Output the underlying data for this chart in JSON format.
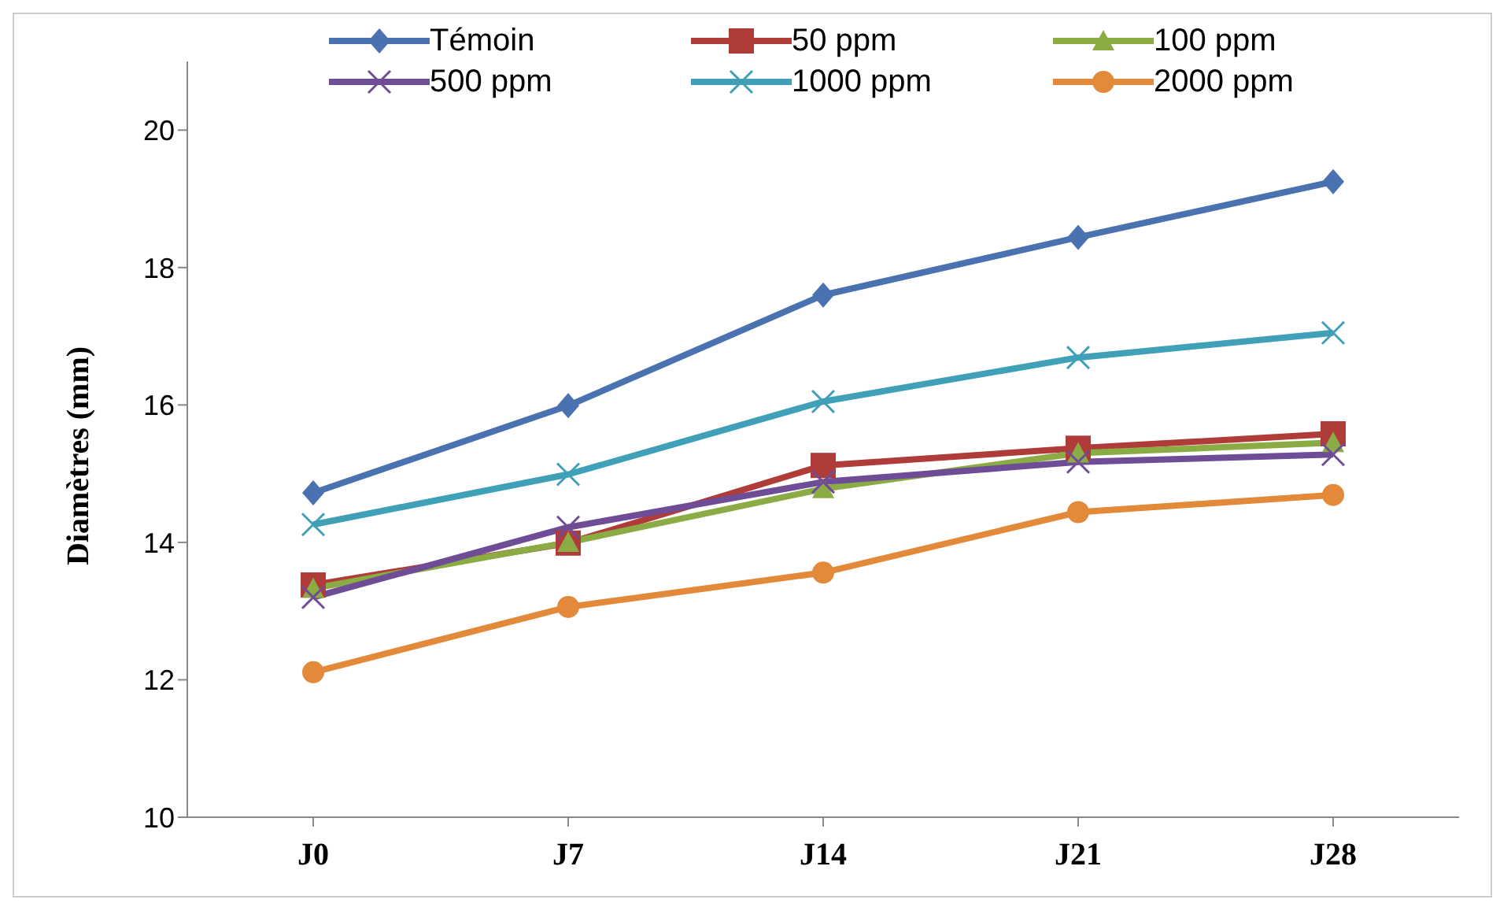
{
  "chart_data": {
    "type": "line",
    "ylabel": "Diamètres (mm)",
    "categories": [
      "J0",
      "J7",
      "J14",
      "J21",
      "J28"
    ],
    "series": [
      {
        "name": "Témoin",
        "color": "#4a72b0",
        "marker": "diamond",
        "values": [
          14.72,
          15.99,
          17.6,
          18.44,
          19.25
        ]
      },
      {
        "name": "50 ppm",
        "color": "#b03c3a",
        "marker": "square",
        "values": [
          13.38,
          13.99,
          15.12,
          15.37,
          15.58
        ]
      },
      {
        "name": "100 ppm",
        "color": "#8bab44",
        "marker": "triangle",
        "values": [
          13.33,
          14.0,
          14.78,
          15.3,
          15.45
        ]
      },
      {
        "name": "500 ppm",
        "color": "#6f4c96",
        "marker": "cross",
        "values": [
          13.2,
          14.22,
          14.88,
          15.17,
          15.28
        ]
      },
      {
        "name": "1000 ppm",
        "color": "#3fa0b8",
        "marker": "cross",
        "values": [
          14.26,
          14.99,
          16.05,
          16.69,
          17.05
        ]
      },
      {
        "name": "2000 ppm",
        "color": "#e38a3a",
        "marker": "circle",
        "values": [
          12.11,
          13.06,
          13.56,
          14.44,
          14.69
        ]
      }
    ],
    "ylim": [
      10,
      21
    ],
    "yticks": [
      10,
      12,
      14,
      16,
      18,
      20
    ],
    "grid": false,
    "legend": "top",
    "line_style": "solid"
  }
}
